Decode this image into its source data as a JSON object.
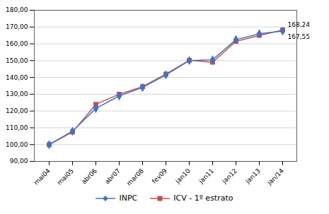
{
  "chart_data": {
    "type": "line",
    "categories": [
      "mai04",
      "mai05",
      "abr06",
      "abr07",
      "mar08",
      "fev09",
      "jan10",
      "jan11",
      "jan12",
      "jan13",
      "jan/14"
    ],
    "series": [
      {
        "name": "INPC",
        "color": "#4472C4",
        "marker": "diamond",
        "values": [
          100.0,
          108.0,
          121.5,
          129.0,
          134.0,
          141.5,
          150.0,
          150.5,
          162.5,
          166.0,
          167.55
        ]
      },
      {
        "name": "ICV - 1º estrato",
        "color": "#C0504D",
        "marker": "square",
        "values": [
          100.0,
          107.5,
          124.0,
          130.0,
          134.5,
          142.0,
          150.2,
          149.0,
          161.5,
          165.0,
          168.24
        ]
      }
    ],
    "annotations": [
      {
        "text": "168,24",
        "x": "jan/14",
        "y": 168.24
      },
      {
        "text": "167,55",
        "x": "jan/14",
        "y": 167.55
      }
    ],
    "ylim": [
      90,
      180
    ],
    "yticks": [
      {
        "value": 90,
        "label": "90,00"
      },
      {
        "value": 100,
        "label": "100,00"
      },
      {
        "value": 110,
        "label": "110,00"
      },
      {
        "value": 120,
        "label": "120,00"
      },
      {
        "value": 130,
        "label": "130,00"
      },
      {
        "value": 140,
        "label": "140,00"
      },
      {
        "value": 150,
        "label": "150,00"
      },
      {
        "value": 160,
        "label": "160,00"
      },
      {
        "value": 170,
        "label": "170,00"
      },
      {
        "value": 180,
        "label": "180,00"
      }
    ],
    "grid": true,
    "legend": "bottom"
  }
}
